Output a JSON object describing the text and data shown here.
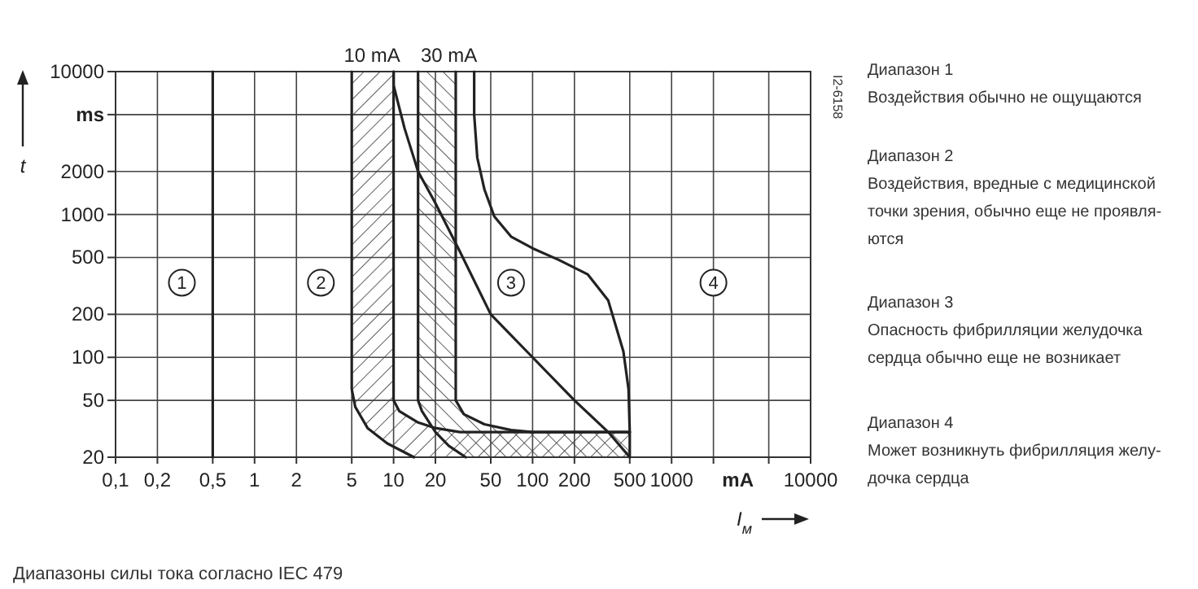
{
  "chart_data": {
    "type": "line",
    "xlabel": "I$_{м}$",
    "ylabel": "t",
    "log": "xy",
    "grid": true,
    "xlim": [
      0.1,
      10000
    ],
    "ylim": [
      20,
      10000
    ],
    "xticks": [
      {
        "value": 0.1,
        "label": "0,1"
      },
      {
        "value": 0.2,
        "label": "0,2"
      },
      {
        "value": 0.5,
        "label": "0,5"
      },
      1,
      2,
      5,
      10,
      20,
      50,
      100,
      200,
      500,
      1000,
      {
        "value": 2000,
        "label": null
      },
      {
        "value": 5000,
        "label": null
      },
      10000
    ],
    "yticks": [
      20,
      50,
      100,
      200,
      500,
      1000,
      2000,
      {
        "value": 5000,
        "label": "ms"
      },
      10000
    ],
    "series": [
      {
        "color": "#222222",
        "x": [
          5,
          5,
          5.3,
          6.5,
          9,
          14
        ],
        "values": [
          10000,
          60,
          45,
          32,
          25,
          20
        ]
      },
      {
        "color": "#222222",
        "x": [
          10,
          10,
          11,
          15,
          20,
          30,
          500
        ],
        "values": [
          10000,
          50,
          42,
          35,
          32,
          30,
          30
        ]
      },
      {
        "color": "#222222",
        "x": [
          15,
          15,
          16,
          20,
          25,
          33
        ],
        "values": [
          10000,
          50,
          42,
          30,
          24,
          20
        ]
      },
      {
        "color": "#222222",
        "x": [
          28,
          28,
          32,
          45,
          70,
          100,
          500
        ],
        "values": [
          10000,
          50,
          40,
          34,
          31,
          30,
          30
        ]
      },
      {
        "color": "#222222",
        "x": [
          0.5,
          0.5
        ],
        "values": [
          20,
          10000
        ]
      },
      {
        "color": "#222222",
        "x": [
          10,
          10,
          12,
          15,
          20,
          30,
          50,
          100,
          200,
          350,
          500
        ],
        "values": [
          10000,
          8000,
          4000,
          2000,
          1200,
          550,
          200,
          100,
          50,
          30,
          20
        ]
      },
      {
        "color": "#222222",
        "x": [
          38,
          38,
          40,
          45,
          53,
          70,
          100,
          155,
          250,
          350,
          450,
          490,
          500,
          500
        ],
        "values": [
          10000,
          5000,
          2500,
          1500,
          970,
          700,
          580,
          480,
          380,
          250,
          110,
          60,
          30,
          20
        ]
      }
    ],
    "annotations": [
      "1",
      "2",
      "3",
      "4",
      "10 mA",
      "30 mA",
      "mA",
      "I2-6158",
      "Диапазон 1\nВоздействия обычно не ощущаются",
      "Диапазон 2\nВоздействия, вредные с медицинской\nточки зрения, обычно еще не проявля-\nются",
      "Диапазон 3\nОпасность фибрилляции желудочка\nсердца обычно еще не возникает",
      "Диапазон 4\nМожет возникнуть фибрилляция желу-\nдочка сердца",
      "Диапазоны силы тока согласно IEC 479"
    ]
  }
}
